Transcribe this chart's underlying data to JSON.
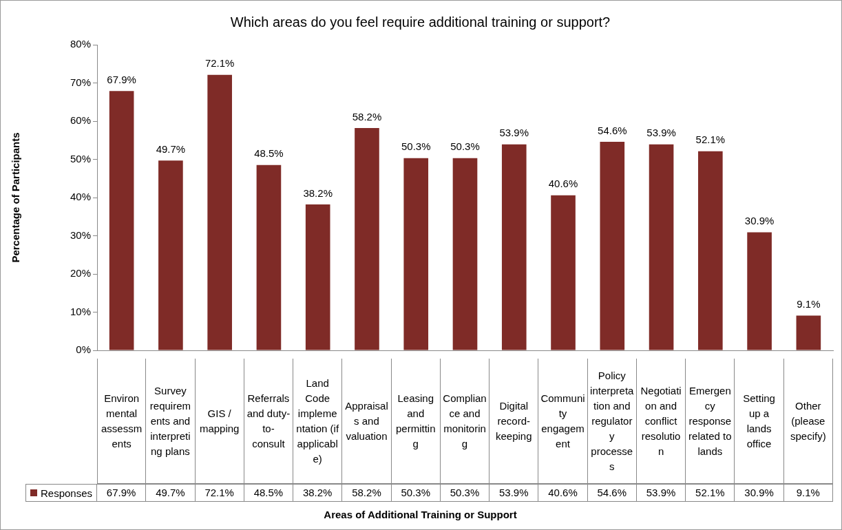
{
  "chart_data": {
    "type": "bar",
    "title": "Which areas do you feel require additional training or support?",
    "xlabel": "Areas of Additional Training or Support",
    "ylabel": "Percentage of Participants",
    "categories": [
      "Environmental assessments",
      "Survey requirements and interpreting plans",
      "GIS / mapping",
      "Referrals and duty-to-consult",
      "Land Code implementation (if applicable)",
      "Appraisals and valuation",
      "Leasing and permitting",
      "Compliance and monitoring",
      "Digital record-keeping",
      "Community engagement",
      "Policy interpretation and regulatory processes",
      "Negotiation and conflict resolution",
      "Emergency response related to lands",
      "Setting up a lands office",
      "Other (please specify)"
    ],
    "series": [
      {
        "name": "Responses",
        "color": "#7f2b27",
        "values": [
          67.9,
          49.7,
          72.1,
          48.5,
          38.2,
          58.2,
          50.3,
          50.3,
          53.9,
          40.6,
          54.6,
          53.9,
          52.1,
          30.9,
          9.1
        ],
        "value_labels": [
          "67.9%",
          "49.7%",
          "72.1%",
          "48.5%",
          "38.2%",
          "58.2%",
          "50.3%",
          "50.3%",
          "53.9%",
          "40.6%",
          "54.6%",
          "53.9%",
          "52.1%",
          "30.9%",
          "9.1%"
        ]
      }
    ],
    "ylim": [
      0,
      80
    ],
    "yticks": [
      {
        "value": 0,
        "label": "0%"
      },
      {
        "value": 10,
        "label": "10%"
      },
      {
        "value": 20,
        "label": "20%"
      },
      {
        "value": 30,
        "label": "30%"
      },
      {
        "value": 40,
        "label": "40%"
      },
      {
        "value": 50,
        "label": "50%"
      },
      {
        "value": 60,
        "label": "60%"
      },
      {
        "value": 70,
        "label": "70%"
      },
      {
        "value": 80,
        "label": "80%"
      }
    ],
    "grid": false,
    "legend": "bottom"
  }
}
